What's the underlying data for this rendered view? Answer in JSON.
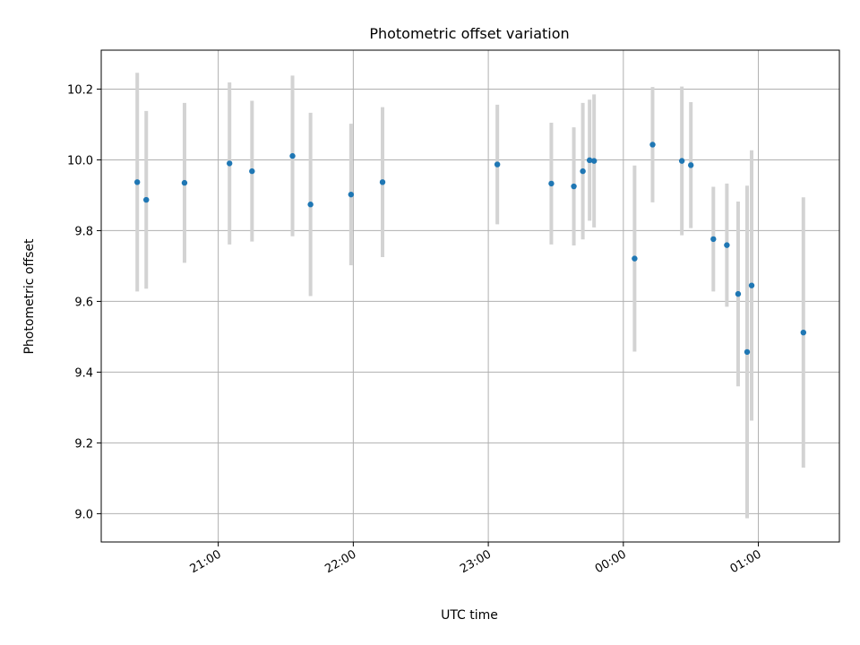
{
  "chart_data": {
    "type": "scatter",
    "title": "Photometric offset variation",
    "xlabel": "UTC time",
    "ylabel": "Photometric offset",
    "grid": true,
    "x_tick_labels": [
      "21:00",
      "22:00",
      "23:00",
      "00:00",
      "01:00"
    ],
    "y_tick_labels": [
      "9.0",
      "9.2",
      "9.4",
      "9.6",
      "9.8",
      "10.0",
      "10.2"
    ],
    "xlim": [
      "20:08",
      "01:36"
    ],
    "ylim": [
      8.92,
      10.31
    ],
    "colors": {
      "marker": "#1f77b4",
      "errorbar": "#d3d3d3",
      "grid": "#b0b0b0"
    },
    "points": [
      {
        "x": "20:24",
        "y": 9.937,
        "err": 0.309
      },
      {
        "x": "20:28",
        "y": 9.887,
        "err": 0.251
      },
      {
        "x": "20:45",
        "y": 9.935,
        "err": 0.226
      },
      {
        "x": "21:05",
        "y": 9.99,
        "err": 0.229
      },
      {
        "x": "21:15",
        "y": 9.968,
        "err": 0.199
      },
      {
        "x": "21:33",
        "y": 10.011,
        "err": 0.227
      },
      {
        "x": "21:41",
        "y": 9.874,
        "err": 0.259
      },
      {
        "x": "21:59",
        "y": 9.902,
        "err": 0.2
      },
      {
        "x": "22:13",
        "y": 9.937,
        "err": 0.212
      },
      {
        "x": "23:04",
        "y": 9.987,
        "err": 0.169
      },
      {
        "x": "23:28",
        "y": 9.933,
        "err": 0.172
      },
      {
        "x": "23:38",
        "y": 9.925,
        "err": 0.167
      },
      {
        "x": "23:42",
        "y": 9.968,
        "err": 0.193
      },
      {
        "x": "23:45",
        "y": 9.999,
        "err": 0.171
      },
      {
        "x": "23:47",
        "y": 9.997,
        "err": 0.188
      },
      {
        "x": "00:05",
        "y": 9.721,
        "err": 0.263
      },
      {
        "x": "00:13",
        "y": 10.043,
        "err": 0.163
      },
      {
        "x": "00:26",
        "y": 9.997,
        "err": 0.21
      },
      {
        "x": "00:30",
        "y": 9.985,
        "err": 0.178
      },
      {
        "x": "00:40",
        "y": 9.776,
        "err": 0.148
      },
      {
        "x": "00:46",
        "y": 9.759,
        "err": 0.174
      },
      {
        "x": "00:51",
        "y": 9.621,
        "err": 0.261
      },
      {
        "x": "00:55",
        "y": 9.457,
        "err": 0.47
      },
      {
        "x": "00:57",
        "y": 9.645,
        "err": 0.382
      },
      {
        "x": "01:20",
        "y": 9.512,
        "err": 0.382
      }
    ]
  }
}
